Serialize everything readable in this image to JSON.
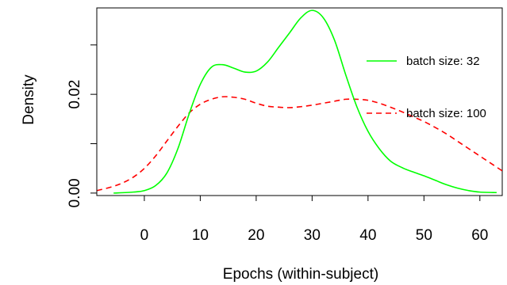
{
  "chart_data": {
    "type": "line",
    "xlabel": "Epochs (within-subject)",
    "ylabel": "Density",
    "xlim": [
      -8.5,
      64
    ],
    "ylim": [
      -0.0005,
      0.0375
    ],
    "x_ticks": [
      0,
      10,
      20,
      30,
      40,
      50,
      60
    ],
    "x_tick_labels": [
      "0",
      "10",
      "20",
      "30",
      "40",
      "50",
      "60"
    ],
    "y_ticks": [
      0.0,
      0.01,
      0.02,
      0.03
    ],
    "y_tick_labels": [
      "0.00",
      "",
      "0.02",
      ""
    ],
    "grid": false,
    "legend": "right",
    "series": [
      {
        "name": "batch size: 32",
        "color": "#00ff00",
        "line_style": "solid",
        "x": [
          -5.5,
          -2,
          0,
          2,
          4,
          6,
          8,
          10,
          12,
          14,
          16,
          18,
          20,
          22,
          24,
          26,
          28,
          30,
          32,
          34,
          36,
          38,
          40,
          42,
          44,
          46,
          48,
          50,
          52,
          54,
          56,
          58,
          60,
          63
        ],
        "y": [
          0.0,
          0.0002,
          0.0005,
          0.0015,
          0.004,
          0.009,
          0.016,
          0.022,
          0.0255,
          0.026,
          0.0253,
          0.0245,
          0.0247,
          0.0265,
          0.0295,
          0.0325,
          0.0355,
          0.037,
          0.0355,
          0.031,
          0.024,
          0.0175,
          0.0125,
          0.009,
          0.0065,
          0.0052,
          0.0043,
          0.0035,
          0.0026,
          0.0017,
          0.001,
          0.0005,
          0.0002,
          0.0001
        ]
      },
      {
        "name": "batch size: 100",
        "color": "#ff0000",
        "line_style": "dashed",
        "x": [
          -8.5,
          -6,
          -4,
          -2,
          0,
          2,
          4,
          6,
          8,
          10,
          12,
          14,
          16,
          18,
          20,
          22,
          24,
          26,
          28,
          30,
          32,
          34,
          36,
          38,
          40,
          42,
          44,
          46,
          48,
          50,
          52,
          54,
          56,
          58,
          60,
          62,
          64
        ],
        "y": [
          0.0005,
          0.0012,
          0.002,
          0.0032,
          0.005,
          0.0075,
          0.0105,
          0.0135,
          0.0162,
          0.018,
          0.019,
          0.0195,
          0.0194,
          0.019,
          0.0182,
          0.0176,
          0.0174,
          0.0173,
          0.0175,
          0.0178,
          0.0182,
          0.0186,
          0.019,
          0.019,
          0.0188,
          0.0182,
          0.0174,
          0.0165,
          0.0155,
          0.0145,
          0.0133,
          0.012,
          0.0105,
          0.009,
          0.0075,
          0.006,
          0.0045
        ]
      }
    ]
  }
}
